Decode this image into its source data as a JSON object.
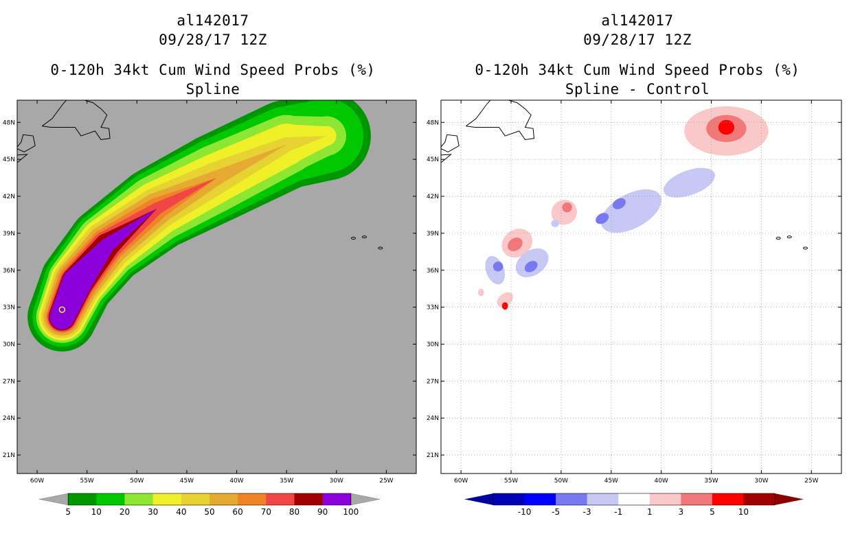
{
  "chart_data": [
    {
      "type": "heatmap",
      "storm_id": "al142017",
      "date": "09/28/17 12Z",
      "title": "0-120h 34kt Cum Wind Speed Probs (%)",
      "subtitle": "Spline",
      "lon_range": [
        -62,
        -22
      ],
      "lat_range": [
        19.5,
        49.8
      ],
      "x_ticks": [
        "60W",
        "55W",
        "50W",
        "45W",
        "40W",
        "35W",
        "30W",
        "25W"
      ],
      "y_ticks": [
        "21N",
        "24N",
        "27N",
        "30N",
        "33N",
        "36N",
        "39N",
        "42N",
        "45N",
        "48N"
      ],
      "background": "#a8a8a8",
      "colorbar": {
        "levels": [
          "5",
          "10",
          "20",
          "30",
          "40",
          "50",
          "60",
          "70",
          "80",
          "90",
          "100"
        ],
        "colors": [
          "#009600",
          "#00c800",
          "#8ce632",
          "#f0f028",
          "#e6d232",
          "#e6aa32",
          "#f08228",
          "#f04646",
          "#a00000",
          "#8c00dc"
        ],
        "end_color": "#a8a8a8"
      },
      "track": {
        "points": [
          [
            -57.5,
            32.2
          ],
          [
            -56,
            35
          ],
          [
            -53,
            38
          ],
          [
            -48,
            41
          ],
          [
            -42,
            43.5
          ],
          [
            -35,
            46.2
          ],
          [
            -31,
            46.9
          ]
        ],
        "bands": [
          {
            "level": 5,
            "half_width_deg": [
              2.8,
              3.0,
              3.2,
              3.4,
              3.6,
              3.6,
              3.6
            ]
          },
          {
            "level": 10,
            "half_width_deg": [
              2.4,
              2.7,
              2.9,
              3.1,
              3.2,
              3.1,
              3.0
            ]
          },
          {
            "level": 20,
            "half_width_deg": [
              2.1,
              2.4,
              2.6,
              2.7,
              2.7,
              2.4,
              1.6
            ]
          },
          {
            "level": 30,
            "half_width_deg": [
              1.9,
              2.2,
              2.3,
              2.2,
              2.0,
              1.7,
              0.8
            ]
          },
          {
            "level": 40,
            "half_width_deg": [
              1.7,
              2.0,
              2.0,
              1.7,
              1.3,
              0.6,
              0.0
            ]
          },
          {
            "level": 50,
            "half_width_deg": [
              1.5,
              1.8,
              1.7,
              1.3,
              0.6,
              0.0,
              0.0
            ]
          },
          {
            "level": 60,
            "half_width_deg": [
              1.3,
              1.6,
              1.4,
              0.9,
              0.0,
              0.0,
              0.0
            ]
          },
          {
            "level": 70,
            "half_width_deg": [
              1.2,
              1.4,
              1.2,
              0.5,
              0.0,
              0.0,
              0.0
            ]
          },
          {
            "level": 80,
            "half_width_deg": [
              1.1,
              1.3,
              1.0,
              0.0,
              0.0,
              0.0,
              0.0
            ]
          },
          {
            "level": 90,
            "half_width_deg": [
              1.0,
              1.2,
              0.6,
              0.0,
              0.0,
              0.0,
              0.0
            ]
          }
        ]
      }
    },
    {
      "type": "heatmap",
      "storm_id": "al142017",
      "date": "09/28/17 12Z",
      "title": "0-120h 34kt Cum Wind Speed Probs (%)",
      "subtitle": "Spline - Control",
      "lon_range": [
        -62,
        -22
      ],
      "lat_range": [
        19.5,
        49.8
      ],
      "x_ticks": [
        "60W",
        "55W",
        "50W",
        "45W",
        "40W",
        "35W",
        "30W",
        "25W"
      ],
      "y_ticks": [
        "21N",
        "24N",
        "27N",
        "30N",
        "33N",
        "36N",
        "39N",
        "42N",
        "45N",
        "48N"
      ],
      "background": "#ffffff",
      "colorbar": {
        "levels": [
          "-10",
          "-5",
          "-3",
          "-1",
          "1",
          "3",
          "5",
          "10"
        ],
        "colors": [
          "#0000b4",
          "#0000ff",
          "#7878f0",
          "#c8c8f5",
          "#ffffff",
          "#fac8c8",
          "#f07878",
          "#ff0000",
          "#a00000"
        ],
        "end_colors": [
          "#00009a",
          "#8c0000"
        ]
      },
      "anomalies": [
        {
          "lon": -33.5,
          "lat": 47.3,
          "rx": 4.2,
          "ry": 2.0,
          "rot": 0,
          "value": 2
        },
        {
          "lon": -33.5,
          "lat": 47.5,
          "rx": 2.0,
          "ry": 1.1,
          "rot": 0,
          "value": 4
        },
        {
          "lon": -33.5,
          "lat": 47.6,
          "rx": 0.8,
          "ry": 0.6,
          "rot": 0,
          "value": 6
        },
        {
          "lon": -37.2,
          "lat": 43.1,
          "rx": 2.7,
          "ry": 1.0,
          "rot": -20,
          "value": -2
        },
        {
          "lon": -43.0,
          "lat": 40.8,
          "rx": 3.3,
          "ry": 1.4,
          "rot": -28,
          "value": -2
        },
        {
          "lon": -44.2,
          "lat": 41.4,
          "rx": 0.7,
          "ry": 0.4,
          "rot": -30,
          "value": -4
        },
        {
          "lon": -45.9,
          "lat": 40.2,
          "rx": 0.7,
          "ry": 0.4,
          "rot": -30,
          "value": -4
        },
        {
          "lon": -49.7,
          "lat": 40.7,
          "rx": 1.3,
          "ry": 1.0,
          "rot": -30,
          "value": 2
        },
        {
          "lon": -49.4,
          "lat": 41.1,
          "rx": 0.5,
          "ry": 0.4,
          "rot": -30,
          "value": 4
        },
        {
          "lon": -54.4,
          "lat": 38.2,
          "rx": 1.6,
          "ry": 1.1,
          "rot": -35,
          "value": 2
        },
        {
          "lon": -54.6,
          "lat": 38.1,
          "rx": 0.8,
          "ry": 0.5,
          "rot": -35,
          "value": 4
        },
        {
          "lon": -56.6,
          "lat": 36.0,
          "rx": 0.9,
          "ry": 1.2,
          "rot": -20,
          "value": -2
        },
        {
          "lon": -56.3,
          "lat": 36.3,
          "rx": 0.5,
          "ry": 0.4,
          "rot": -20,
          "value": -4
        },
        {
          "lon": -52.9,
          "lat": 36.6,
          "rx": 1.8,
          "ry": 1.0,
          "rot": -35,
          "value": -2
        },
        {
          "lon": -53.0,
          "lat": 36.3,
          "rx": 0.7,
          "ry": 0.4,
          "rot": -35,
          "value": -4
        },
        {
          "lon": -55.6,
          "lat": 33.6,
          "rx": 0.9,
          "ry": 0.5,
          "rot": -40,
          "value": 2
        },
        {
          "lon": -55.6,
          "lat": 33.1,
          "rx": 0.3,
          "ry": 0.3,
          "rot": 0,
          "value": 6
        },
        {
          "lon": -58.0,
          "lat": 34.2,
          "rx": 0.3,
          "ry": 0.3,
          "rot": 0,
          "value": 2
        },
        {
          "lon": -50.6,
          "lat": 39.8,
          "rx": 0.4,
          "ry": 0.3,
          "rot": 0,
          "value": -2
        }
      ]
    }
  ]
}
